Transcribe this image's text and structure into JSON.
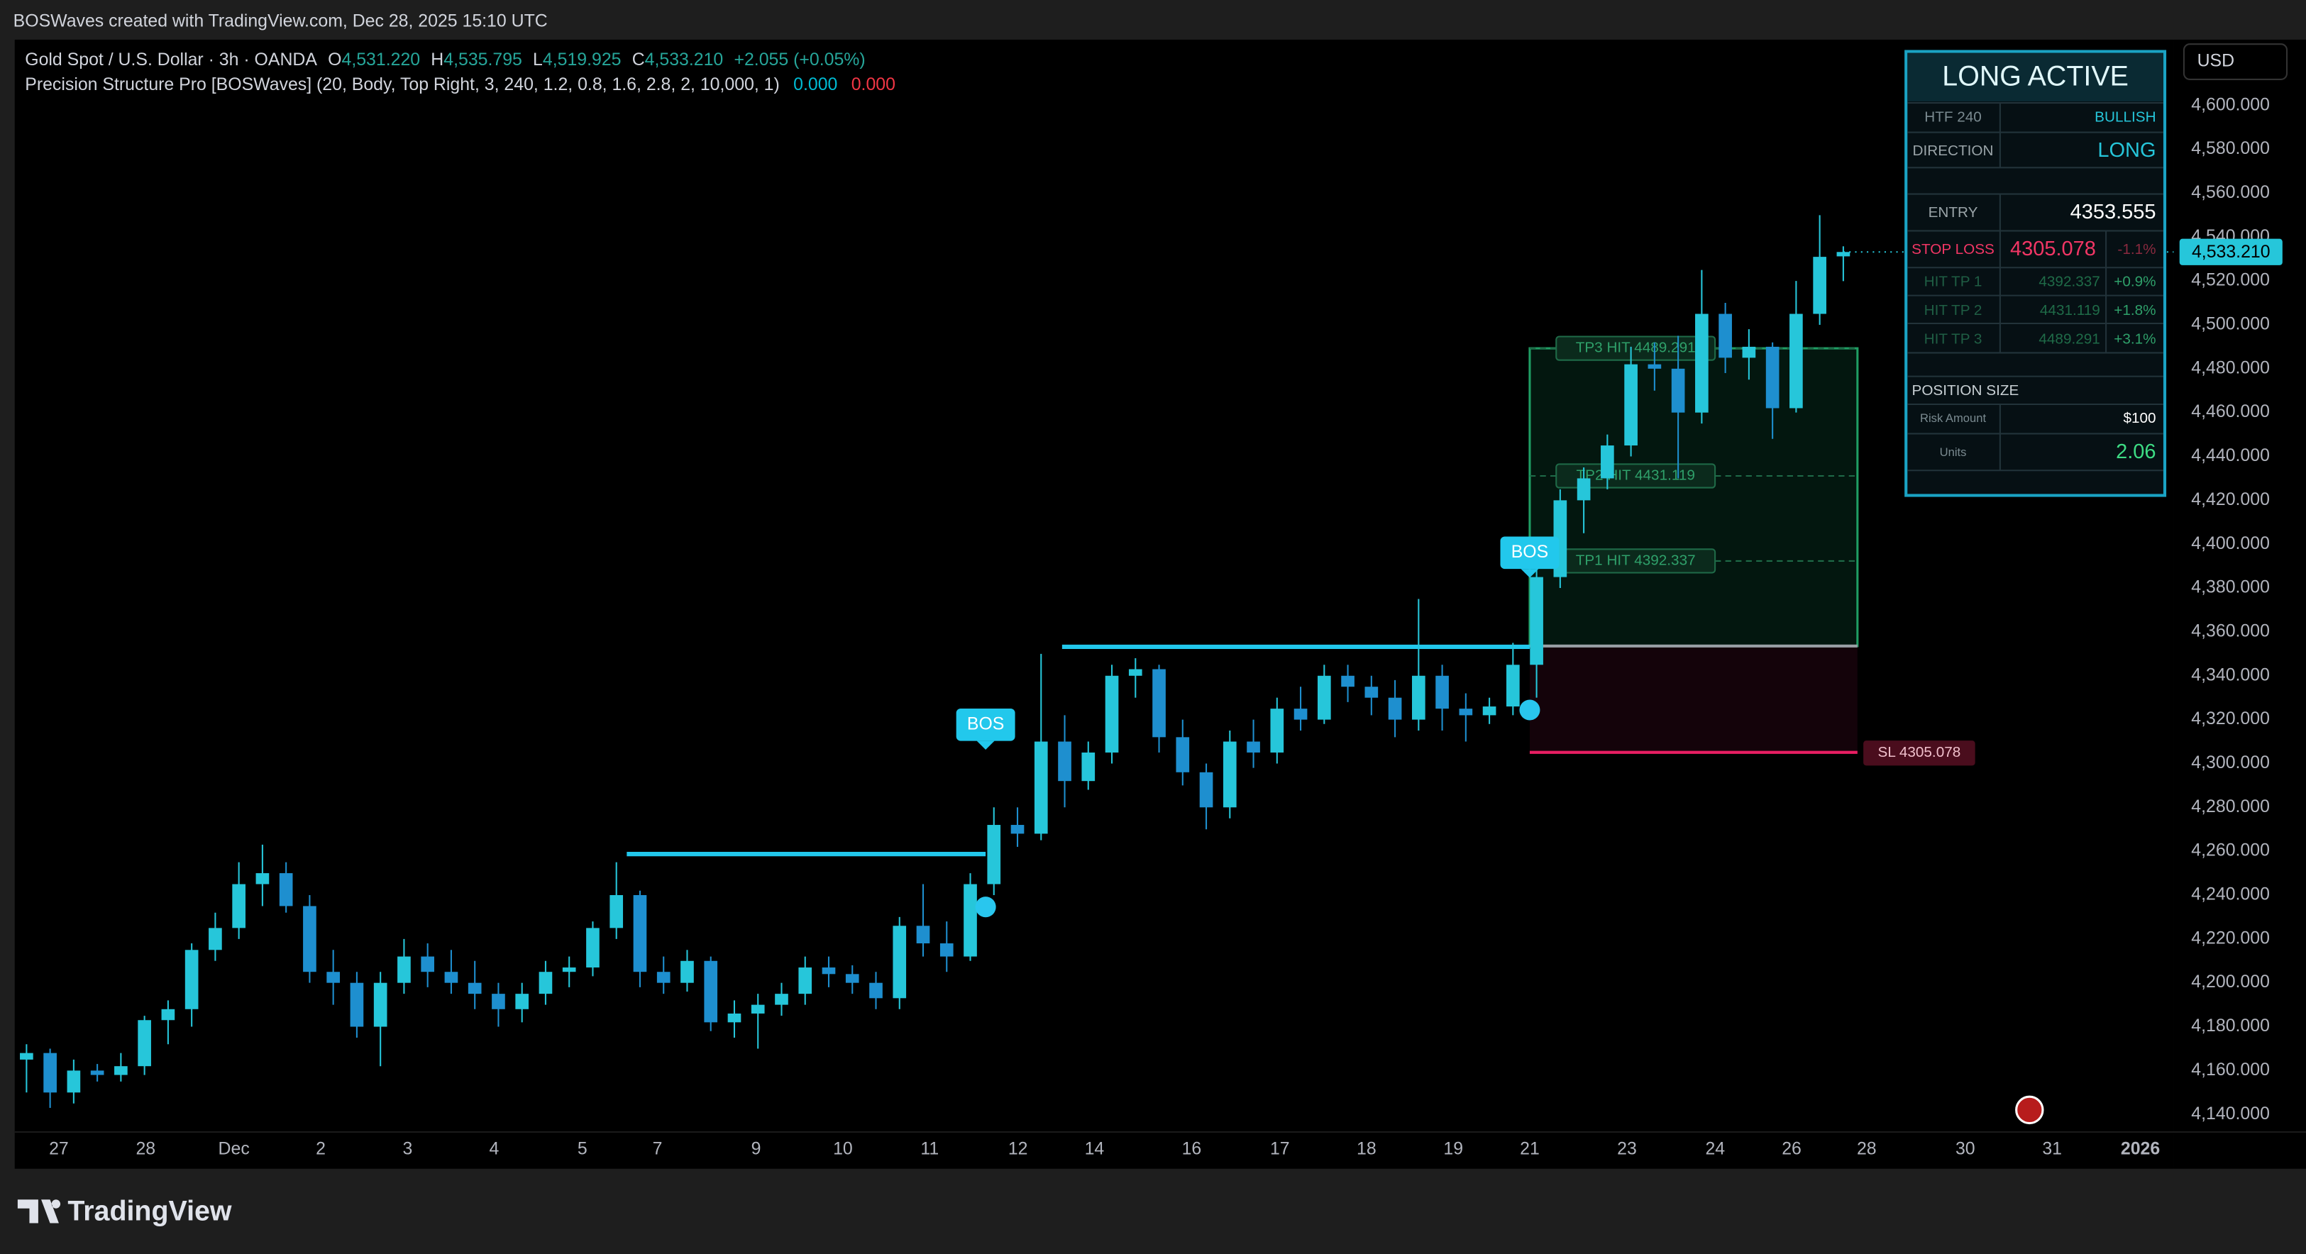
{
  "header": {
    "attribution": "BOSWaves created with TradingView.com, Dec 28, 2025 15:10 UTC",
    "currency": "USD",
    "brand": "TradingView"
  },
  "legend": {
    "symbol": "Gold Spot / U.S. Dollar · 3h · OANDA",
    "o_key": "O",
    "o": "4,531.220",
    "h_key": "H",
    "h": "4,535.795",
    "l_key": "L",
    "l": "4,519.925",
    "c_key": "C",
    "c": "4,533.210",
    "change": "+2.055 (+0.05%)",
    "indicator": "Precision Structure Pro [BOSWaves] (20, Body, Top Right, 3, 240, 1.2, 0.8, 1.6, 2.8, 2, 10,000, 1)",
    "ind_v1": "0.000",
    "ind_v2": "0.000"
  },
  "panel": {
    "title": "LONG ACTIVE",
    "htf_key": "HTF 240",
    "htf_val": "BULLISH",
    "dir_key": "DIRECTION",
    "dir_val": "LONG",
    "entry_key": "ENTRY",
    "sl_key": "STOP LOSS",
    "sl_pct": "-1.1%",
    "tp_rows": [
      {
        "key": "HIT TP 1",
        "pct": "+0.9%"
      },
      {
        "key": "HIT TP 2",
        "pct": "+1.8%"
      },
      {
        "key": "HIT TP 3",
        "pct": "+3.1%"
      }
    ],
    "pos_key": "POSITION SIZE",
    "risk_key": "Risk Amount",
    "risk_val": "$100",
    "units_key": "Units",
    "units_val": 2.06
  },
  "chart_data": {
    "type": "candlestick",
    "up_color": "#26c6da",
    "down_color": "#1e8fcf",
    "grid": false,
    "xlim": [
      -0.5,
      91
    ],
    "ylim": [
      4132,
      4630
    ],
    "xticks": [
      {
        "value": 1.37,
        "label": "27"
      },
      {
        "value": 5.05,
        "label": "28"
      },
      {
        "value": 8.79,
        "label": "Dec"
      },
      {
        "value": 12.47,
        "label": "2"
      },
      {
        "value": 16.15,
        "label": "3"
      },
      {
        "value": 19.82,
        "label": "4"
      },
      {
        "value": 23.56,
        "label": "5"
      },
      {
        "value": 26.74,
        "label": "7"
      },
      {
        "value": 30.92,
        "label": "9"
      },
      {
        "value": 34.6,
        "label": "10"
      },
      {
        "value": 38.28,
        "label": "11"
      },
      {
        "value": 42.02,
        "label": "12"
      },
      {
        "value": 45.26,
        "label": "14"
      },
      {
        "value": 49.38,
        "label": "16"
      },
      {
        "value": 53.12,
        "label": "17"
      },
      {
        "value": 56.79,
        "label": "18"
      },
      {
        "value": 60.47,
        "label": "19"
      },
      {
        "value": 63.71,
        "label": "21"
      },
      {
        "value": 67.83,
        "label": "23"
      },
      {
        "value": 71.57,
        "label": "24"
      },
      {
        "value": 74.81,
        "label": "26"
      },
      {
        "value": 77.99,
        "label": "28"
      },
      {
        "value": 82.17,
        "label": "30"
      },
      {
        "value": 85.85,
        "label": "31"
      },
      {
        "value": 89.59,
        "label": "2026"
      }
    ],
    "yticks": [
      {
        "value": 4140,
        "label": "4,140.000"
      },
      {
        "value": 4160,
        "label": "4,160.000"
      },
      {
        "value": 4180,
        "label": "4,180.000"
      },
      {
        "value": 4200,
        "label": "4,200.000"
      },
      {
        "value": 4220,
        "label": "4,220.000"
      },
      {
        "value": 4240,
        "label": "4,240.000"
      },
      {
        "value": 4260,
        "label": "4,260.000"
      },
      {
        "value": 4280,
        "label": "4,280.000"
      },
      {
        "value": 4300,
        "label": "4,300.000"
      },
      {
        "value": 4320,
        "label": "4,320.000"
      },
      {
        "value": 4340,
        "label": "4,340.000"
      },
      {
        "value": 4360,
        "label": "4,360.000"
      },
      {
        "value": 4380,
        "label": "4,380.000"
      },
      {
        "value": 4400,
        "label": "4,400.000"
      },
      {
        "value": 4420,
        "label": "4,420.000"
      },
      {
        "value": 4440,
        "label": "4,440.000"
      },
      {
        "value": 4460,
        "label": "4,460.000"
      },
      {
        "value": 4480,
        "label": "4,480.000"
      },
      {
        "value": 4500,
        "label": "4,500.000"
      },
      {
        "value": 4520,
        "label": "4,520.000"
      },
      {
        "value": 4540,
        "label": "4,540.000"
      },
      {
        "value": 4560,
        "label": "4,560.000"
      },
      {
        "value": 4580,
        "label": "4,580.000"
      },
      {
        "value": 4600,
        "label": "4,600.000"
      }
    ],
    "last_price": {
      "value": 4533.21,
      "label": "4,533.210"
    },
    "open": [
      4165,
      4168,
      4150,
      4160,
      4158,
      4162,
      4183,
      4188,
      4215,
      4225,
      4245,
      4250,
      4235,
      4205,
      4200,
      4180,
      4200,
      4212,
      4205,
      4200,
      4195,
      4188,
      4195,
      4205,
      4207,
      4225,
      4240,
      4205,
      4200,
      4210,
      4182,
      4186,
      4190,
      4195,
      4207,
      4204,
      4200,
      4193,
      4226,
      4218,
      4212,
      4245,
      4272,
      4268,
      4310,
      4292,
      4305,
      4340,
      4343,
      4312,
      4296,
      4280,
      4310,
      4305,
      4325,
      4320,
      4340,
      4335,
      4330,
      4320,
      4340,
      4325,
      4322,
      4326,
      4345,
      4385,
      4420,
      4430,
      4445,
      4482,
      4480,
      4460,
      4505,
      4485,
      4490,
      4462,
      4505,
      4531.22
    ],
    "high": [
      4172,
      4170,
      4165,
      4163,
      4168,
      4185,
      4192,
      4218,
      4232,
      4255,
      4263,
      4255,
      4240,
      4215,
      4205,
      4205,
      4220,
      4218,
      4215,
      4210,
      4200,
      4200,
      4210,
      4212,
      4228,
      4255,
      4242,
      4212,
      4215,
      4212,
      4192,
      4195,
      4200,
      4212,
      4212,
      4208,
      4205,
      4230,
      4245,
      4228,
      4250,
      4280,
      4280,
      4350,
      4322,
      4310,
      4345,
      4348,
      4345,
      4320,
      4300,
      4315,
      4320,
      4330,
      4335,
      4345,
      4345,
      4340,
      4338,
      4375,
      4345,
      4332,
      4330,
      4355,
      4390,
      4425,
      4435,
      4450,
      4490,
      4492,
      4495,
      4525,
      4510,
      4498,
      4492,
      4520,
      4550,
      4535.795
    ],
    "low": [
      4150,
      4143,
      4145,
      4155,
      4155,
      4158,
      4172,
      4180,
      4210,
      4220,
      4235,
      4232,
      4200,
      4190,
      4175,
      4162,
      4195,
      4198,
      4195,
      4188,
      4180,
      4182,
      4190,
      4198,
      4203,
      4220,
      4198,
      4195,
      4196,
      4178,
      4175,
      4170,
      4185,
      4190,
      4198,
      4195,
      4188,
      4188,
      4212,
      4205,
      4210,
      4240,
      4262,
      4265,
      4280,
      4288,
      4300,
      4330,
      4305,
      4290,
      4270,
      4275,
      4298,
      4300,
      4315,
      4318,
      4328,
      4322,
      4312,
      4315,
      4315,
      4310,
      4318,
      4322,
      4330,
      4380,
      4405,
      4425,
      4440,
      4470,
      4430,
      4455,
      4478,
      4475,
      4448,
      4460,
      4500,
      4519.925
    ],
    "close": [
      4168,
      4150,
      4160,
      4158,
      4162,
      4183,
      4188,
      4215,
      4225,
      4245,
      4250,
      4235,
      4205,
      4200,
      4180,
      4200,
      4212,
      4205,
      4200,
      4195,
      4188,
      4195,
      4205,
      4207,
      4225,
      4240,
      4205,
      4200,
      4210,
      4182,
      4186,
      4190,
      4195,
      4207,
      4204,
      4200,
      4193,
      4226,
      4218,
      4212,
      4245,
      4272,
      4268,
      4310,
      4292,
      4305,
      4340,
      4343,
      4312,
      4296,
      4280,
      4310,
      4305,
      4325,
      4320,
      4340,
      4335,
      4330,
      4320,
      4340,
      4325,
      4322,
      4326,
      4345,
      4385,
      4420,
      4430,
      4445,
      4482,
      4480,
      4460,
      4505,
      4485,
      4490,
      4462,
      4505,
      4531,
      4533.21
    ],
    "structures": [
      {
        "label": "BOS",
        "level": 4258.7,
        "from": 25.44,
        "to": 40.65,
        "signal": 4234.6
      },
      {
        "label": "BOS",
        "level": 4353.2,
        "from": 43.89,
        "to": 63.71,
        "signal": 4324.4
      }
    ],
    "trade": {
      "from": 63.71,
      "to": 77.6,
      "entry": 4353.555,
      "stop": 4305.078,
      "tps": [
        4392.337,
        4431.119,
        4489.291
      ],
      "tp_labels": [
        "TP1 HIT 4392.337",
        "TP2 HIT 4431.119",
        "TP3 HIT 4489.291"
      ],
      "sl_label": "SL 4305.078"
    }
  }
}
